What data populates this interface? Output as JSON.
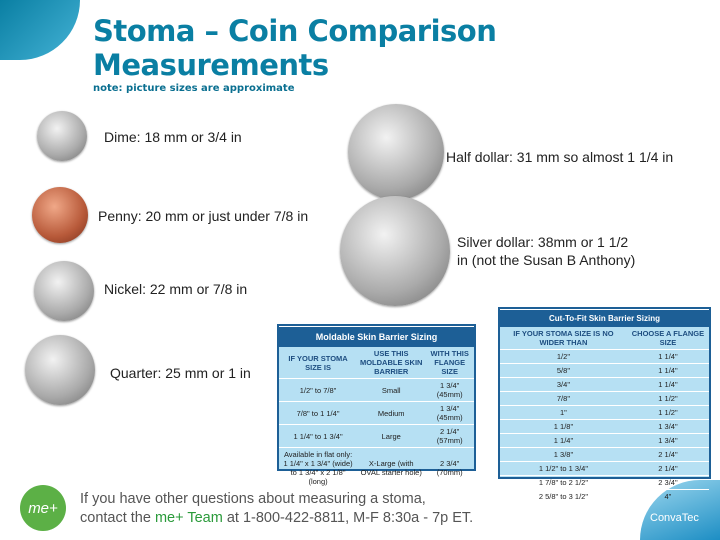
{
  "title": "Stoma – Coin Comparison Measurements",
  "note": "note: picture sizes are approximate",
  "coins": {
    "dime": "Dime: 18 mm or 3/4 in",
    "penny": "Penny: 20 mm or just under 7/8 in",
    "nickel": "Nickel: 22 mm  or 7/8 in",
    "quarter": "Quarter: 25 mm or 1 in",
    "half_dollar": "Half dollar: 31 mm so almost 1 1/4 in",
    "silver_dollar": "Silver dollar: 38mm or 1 1/2 in (not the Susan B Anthony)"
  },
  "moldable": {
    "title": "Moldable Skin Barrier Sizing",
    "headers": [
      "IF YOUR STOMA SIZE IS",
      "USE THIS MOLDABLE SKIN BARRIER",
      "WITH THIS FLANGE SIZE"
    ],
    "rows": [
      [
        "1/2\" to 7/8\"",
        "Small",
        "1 3/4\" (45mm)"
      ],
      [
        "7/8\" to 1 1/4\"",
        "Medium",
        "1 3/4\" (45mm)"
      ],
      [
        "1 1/4\" to 1 3/4\"",
        "Large",
        "2 1/4\" (57mm)"
      ],
      [
        "Available in flat only: 1 1/4\" x 1 3/4\" (wide) to 1 3/4\" x 2 1/8\" (long)",
        "X-Large (with OVAL starter hole)",
        "2 3/4\" (70mm)"
      ]
    ]
  },
  "cut_to_fit": {
    "title": "Cut-To-Fit Skin Barrier Sizing",
    "headers": [
      "IF YOUR STOMA SIZE IS NO WIDER THAN",
      "CHOOSE A FLANGE SIZE"
    ],
    "rows": [
      [
        "1/2\"",
        "1 1/4\""
      ],
      [
        "5/8\"",
        "1 1/4\""
      ],
      [
        "3/4\"",
        "1 1/4\""
      ],
      [
        "7/8\"",
        "1 1/2\""
      ],
      [
        "1\"",
        "1 1/2\""
      ],
      [
        "1 1/8\"",
        "1 3/4\""
      ],
      [
        "1 1/4\"",
        "1 3/4\""
      ],
      [
        "1 3/8\"",
        "2 1/4\""
      ],
      [
        "1 1/2\" to 1 3/4\"",
        "2 1/4\""
      ],
      [
        "1 7/8\" to 2 1/2\"",
        "2 3/4\""
      ],
      [
        "2 5/8\" to 3 1/2\"",
        "4\""
      ]
    ]
  },
  "footer": {
    "logo": "me+",
    "line1": "If you have other questions about measuring a stoma,",
    "line2_pre": "contact the ",
    "line2_team": "me+ Team",
    "line2_post": " at 1-800-422-8811, M-F 8:30a - 7p ET.",
    "brand": "ConvaTec"
  }
}
